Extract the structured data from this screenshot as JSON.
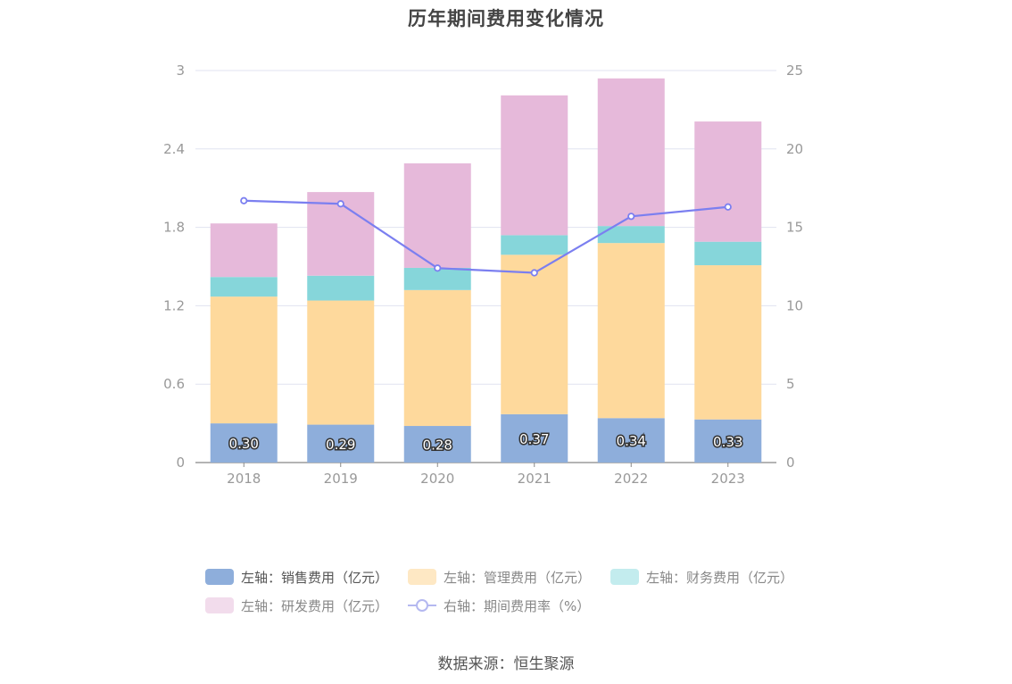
{
  "title": "历年期间费用变化情况",
  "source": "数据来源：恒生聚源",
  "chart_data": {
    "type": "bar",
    "stacked": true,
    "categories": [
      "2018",
      "2019",
      "2020",
      "2021",
      "2022",
      "2023"
    ],
    "left_axis": {
      "min": 0,
      "max": 3,
      "ticks": [
        "0",
        "0.6",
        "1.2",
        "1.8",
        "2.4",
        "3"
      ]
    },
    "right_axis": {
      "min": 0,
      "max": 25,
      "ticks": [
        "0",
        "5",
        "10",
        "15",
        "20",
        "25"
      ]
    },
    "series": [
      {
        "name": "左轴：销售费用（亿元）",
        "color": "#8eaedb",
        "values": [
          0.3,
          0.29,
          0.28,
          0.37,
          0.34,
          0.33
        ],
        "labels": [
          "0.30",
          "0.29",
          "0.28",
          "0.37",
          "0.34",
          "0.33"
        ]
      },
      {
        "name": "左轴：管理费用（亿元）",
        "color": "#fed99c",
        "legend_color": "#fee8c4",
        "values": [
          0.97,
          0.95,
          1.04,
          1.22,
          1.34,
          1.18
        ]
      },
      {
        "name": "左轴：财务费用（亿元）",
        "color": "#86d6da",
        "legend_color": "#c3ecee",
        "values": [
          0.15,
          0.19,
          0.17,
          0.15,
          0.13,
          0.18
        ]
      },
      {
        "name": "左轴：研发费用（亿元）",
        "color": "#e6b9da",
        "legend_color": "#f2dcec",
        "values": [
          0.41,
          0.64,
          0.8,
          1.07,
          1.13,
          0.92
        ]
      }
    ],
    "line": {
      "name": "右轴：期间费用率（%）",
      "color": "#7b7ff0",
      "values": [
        16.7,
        16.5,
        12.4,
        12.1,
        15.7,
        16.3
      ]
    }
  }
}
